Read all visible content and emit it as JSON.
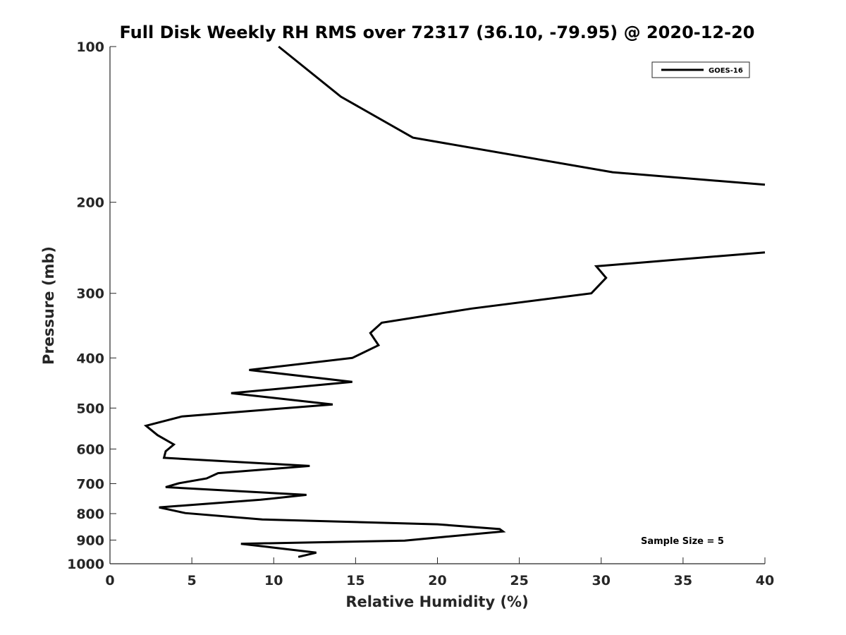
{
  "chart_data": {
    "type": "line",
    "title": "Full Disk Weekly RH RMS over 72317 (36.10, -79.95) @ 2020-12-20",
    "xlabel": "Relative Humidity (%)",
    "ylabel": "Pressure (mb)",
    "xlim": [
      0,
      40
    ],
    "ylim": [
      100,
      1000
    ],
    "yscale": "log",
    "y_reversed": true,
    "xticks": [
      "0",
      "5",
      "10",
      "15",
      "20",
      "25",
      "30",
      "35",
      "40"
    ],
    "yticks": [
      "100",
      "200",
      "300",
      "400",
      "500",
      "600",
      "700",
      "800",
      "900",
      "1000"
    ],
    "grid": false,
    "legend": {
      "position": "top-right",
      "entries": [
        "GOES-16"
      ]
    },
    "annotation": "Sample Size = 5",
    "series": [
      {
        "name": "GOES-16",
        "color": "#000000",
        "segments": [
          [
            [
              10.3,
              100
            ],
            [
              14.1,
              125
            ],
            [
              18.5,
              150
            ],
            [
              30.7,
              175
            ],
            [
              40.0,
              185
            ]
          ],
          [
            [
              40.0,
              250
            ],
            [
              29.7,
              266
            ],
            [
              30.3,
              280
            ],
            [
              29.4,
              300
            ],
            [
              22.1,
              321
            ],
            [
              16.6,
              342
            ],
            [
              15.9,
              358
            ],
            [
              16.4,
              378
            ],
            [
              14.8,
              400
            ],
            [
              8.5,
              422
            ],
            [
              14.8,
              445
            ],
            [
              7.4,
              468
            ],
            [
              13.6,
              492
            ],
            [
              4.4,
              519
            ],
            [
              2.2,
              541
            ],
            [
              2.9,
              564
            ],
            [
              3.9,
              588
            ],
            [
              3.4,
              606
            ],
            [
              3.3,
              624
            ],
            [
              12.2,
              647
            ],
            [
              6.6,
              668
            ],
            [
              5.9,
              684
            ],
            [
              4.2,
              699
            ],
            [
              3.4,
              711
            ],
            [
              12.0,
              736
            ],
            [
              9.2,
              752
            ],
            [
              3.0,
              778
            ],
            [
              4.6,
              798
            ],
            [
              9.3,
              821
            ],
            [
              20.0,
              839
            ],
            [
              23.8,
              857
            ],
            [
              24.0,
              866
            ],
            [
              18.0,
              902
            ],
            [
              8.0,
              915
            ],
            [
              9.8,
              929
            ],
            [
              12.6,
              952
            ],
            [
              11.5,
              970
            ]
          ]
        ]
      }
    ]
  }
}
